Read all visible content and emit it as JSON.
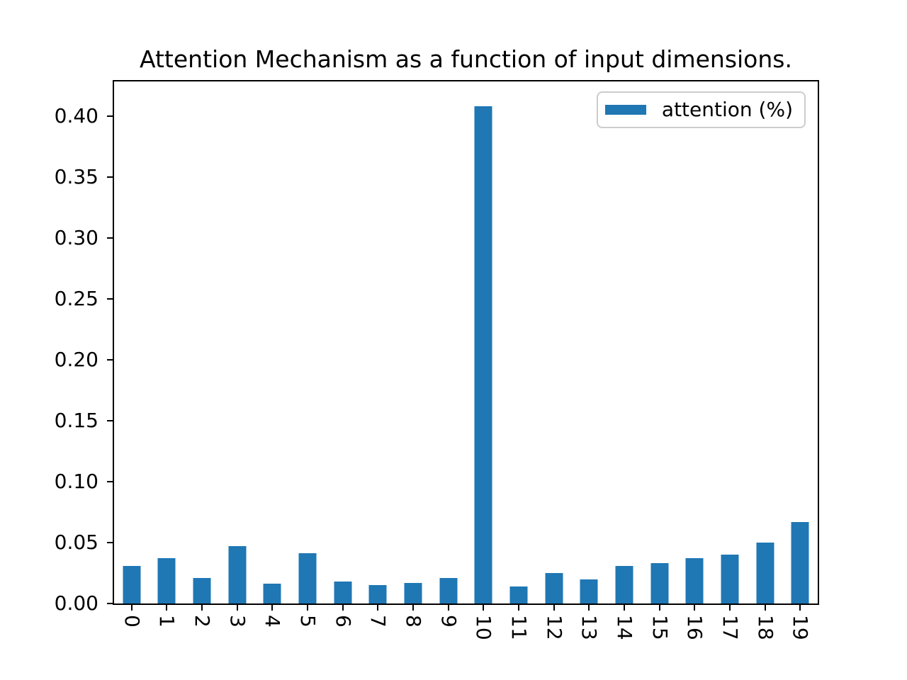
{
  "figure": {
    "background": "#ffffff"
  },
  "legend": {
    "position": "upper right",
    "label": "attention (%)"
  },
  "chart_data": {
    "type": "bar",
    "title": "Attention Mechanism as a function of input dimensions.",
    "xlabel": "",
    "ylabel": "",
    "categories": [
      "0",
      "1",
      "2",
      "3",
      "4",
      "5",
      "6",
      "7",
      "8",
      "9",
      "10",
      "11",
      "12",
      "13",
      "14",
      "15",
      "16",
      "17",
      "18",
      "19"
    ],
    "series": [
      {
        "name": "attention (%)",
        "values": [
          0.031,
          0.037,
          0.021,
          0.047,
          0.016,
          0.041,
          0.018,
          0.015,
          0.017,
          0.021,
          0.408,
          0.014,
          0.025,
          0.02,
          0.031,
          0.033,
          0.037,
          0.04,
          0.05,
          0.067
        ]
      }
    ],
    "bar_color": "#1f77b4",
    "bar_width_fraction": 0.5,
    "ylim": [
      0,
      0.4284
    ],
    "yticks": [
      0.0,
      0.05,
      0.1,
      0.15,
      0.2,
      0.25,
      0.3,
      0.35,
      0.4
    ],
    "ytick_labels": [
      "0.00",
      "0.05",
      "0.10",
      "0.15",
      "0.20",
      "0.25",
      "0.30",
      "0.35",
      "0.40"
    ],
    "x_tick_rotation": 90,
    "grid": false,
    "legend_position": "upper right",
    "spine_color": "#000000"
  }
}
